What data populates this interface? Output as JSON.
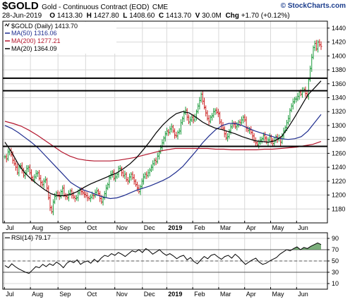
{
  "header": {
    "symbol": "$GOLD",
    "description": "Gold - Continuous Contract (EOD)",
    "exchange": "CME",
    "brand": "© StockCharts.com",
    "date": "28-Jun-2019",
    "open_label": "O",
    "open": "1413.30",
    "high_label": "H",
    "high": "1427.80",
    "low_label": "L",
    "low": "1408.60",
    "close_label": "C",
    "close": "1413.70",
    "volume_label": "V",
    "volume": "30.0M",
    "change_label": "Chg",
    "change": "+1.70 (+0.12%)"
  },
  "legend": {
    "price": "$GOLD (Daily) 1413.70",
    "ma50": "MA(50) 1316.06",
    "ma200": "MA(200) 1277.21",
    "ma20": "MA(20) 1364.09"
  },
  "rsi_legend": "RSI(14) 79.17",
  "colors": {
    "up": "#1a9a3a",
    "down": "#cc2020",
    "ma50": "#1f2d8f",
    "ma200": "#b4162d",
    "ma20": "#000000",
    "rsi": "#000000",
    "rsi_fill": "#5a9a5a",
    "grid": "#d8d8d8"
  },
  "chart_data": [
    {
      "type": "line",
      "title": "$GOLD (Daily)",
      "ylim": [
        1160,
        1450
      ],
      "y_ticks": [
        "1180",
        "1200",
        "1220",
        "1240",
        "1260",
        "1280",
        "1300",
        "1320",
        "1340",
        "1360",
        "1380",
        "1400",
        "1420",
        "1440"
      ],
      "x_labels": [
        "Jul",
        "Aug",
        "Sep",
        "Oct",
        "Nov",
        "Dec",
        "2019",
        "Feb",
        "Mar",
        "Apr",
        "May",
        "Jun"
      ],
      "horizontal_lines": [
        1368,
        1350,
        1270
      ],
      "grid": true,
      "legend_position": "top-left",
      "series": [
        {
          "name": "$GOLD (Daily)",
          "style": "ohlc",
          "values": [
            1255,
            1252,
            1262,
            1264,
            1258,
            1250,
            1245,
            1240,
            1232,
            1240,
            1242,
            1236,
            1228,
            1232,
            1238,
            1240,
            1232,
            1225,
            1222,
            1226,
            1231,
            1232,
            1224,
            1218,
            1215,
            1220,
            1222,
            1210,
            1196,
            1182,
            1176,
            1190,
            1198,
            1203,
            1200,
            1198,
            1205,
            1210,
            1200,
            1198,
            1196,
            1202,
            1206,
            1200,
            1197,
            1195,
            1196,
            1203,
            1207,
            1205,
            1203,
            1201,
            1199,
            1196,
            1195,
            1197,
            1200,
            1199,
            1204,
            1206,
            1202,
            1195,
            1190,
            1196,
            1202,
            1210,
            1215,
            1225,
            1230,
            1233,
            1224,
            1226,
            1230,
            1238,
            1238,
            1232,
            1228,
            1230,
            1222,
            1220,
            1226,
            1230,
            1225,
            1220,
            1215,
            1210,
            1205,
            1212,
            1220,
            1226,
            1230,
            1228,
            1232,
            1236,
            1240,
            1245,
            1250,
            1248,
            1256,
            1262,
            1268,
            1275,
            1282,
            1288,
            1292,
            1290,
            1295,
            1298,
            1292,
            1286,
            1285,
            1290,
            1292,
            1304,
            1310,
            1318,
            1322,
            1312,
            1305,
            1308,
            1312,
            1308,
            1312,
            1320,
            1328,
            1336,
            1345,
            1335,
            1326,
            1318,
            1310,
            1306,
            1312,
            1314,
            1320,
            1322,
            1319,
            1317,
            1305,
            1300,
            1296,
            1288,
            1282,
            1284,
            1292,
            1298,
            1303,
            1302,
            1298,
            1300,
            1305,
            1304,
            1308,
            1312,
            1308,
            1296,
            1293,
            1294,
            1290,
            1285,
            1278,
            1275,
            1272,
            1275,
            1279,
            1281,
            1286,
            1282,
            1276,
            1279,
            1284,
            1278,
            1274,
            1278,
            1284,
            1280,
            1282,
            1276,
            1285,
            1292,
            1297,
            1304,
            1310,
            1322,
            1328,
            1334,
            1338,
            1338,
            1342,
            1348,
            1345,
            1350,
            1352,
            1346,
            1342,
            1366,
            1382,
            1398,
            1412,
            1418,
            1410,
            1420,
            1416,
            1413.7
          ]
        },
        {
          "name": "MA(50)",
          "values": [
            1300,
            1296,
            1290,
            1283,
            1276,
            1268,
            1258,
            1248,
            1238,
            1228,
            1218,
            1212,
            1207,
            1204,
            1200,
            1197,
            1195,
            1196,
            1199,
            1203,
            1207,
            1210,
            1213,
            1217,
            1221,
            1226,
            1233,
            1241,
            1252,
            1263,
            1275,
            1285,
            1294,
            1300,
            1303,
            1303,
            1300,
            1296,
            1292,
            1289,
            1286,
            1283,
            1281,
            1280,
            1281,
            1284,
            1292,
            1304,
            1316
          ]
        },
        {
          "name": "MA(200)",
          "values": [
            1306,
            1303,
            1299,
            1293,
            1286,
            1278,
            1270,
            1262,
            1256,
            1252,
            1250,
            1249,
            1249,
            1249,
            1250,
            1252,
            1254,
            1257,
            1260,
            1263,
            1265,
            1267,
            1267,
            1267,
            1267,
            1267,
            1266,
            1266,
            1265,
            1265,
            1265,
            1265,
            1266,
            1266,
            1267,
            1268,
            1269,
            1271,
            1273,
            1277
          ]
        },
        {
          "name": "MA(20)",
          "values": [
            1276,
            1262,
            1245,
            1232,
            1223,
            1215,
            1208,
            1202,
            1199,
            1199,
            1201,
            1205,
            1211,
            1216,
            1220,
            1224,
            1228,
            1232,
            1238,
            1245,
            1254,
            1265,
            1277,
            1290,
            1301,
            1310,
            1317,
            1320,
            1318,
            1312,
            1305,
            1300,
            1296,
            1294,
            1291,
            1288,
            1284,
            1281,
            1278,
            1277,
            1276,
            1278,
            1284,
            1297,
            1312,
            1328,
            1344,
            1354,
            1364.09
          ]
        }
      ]
    },
    {
      "type": "line",
      "title": "RSI(14)",
      "ylim": [
        0,
        100
      ],
      "y_ticks": [
        "10",
        "30",
        "50",
        "70",
        "90"
      ],
      "x_labels": [
        "Jul",
        "Aug",
        "Sep",
        "Oct",
        "Nov",
        "Dec",
        "2019",
        "Feb",
        "Mar",
        "Apr",
        "May",
        "Jun"
      ],
      "horizontal_lines": [
        70,
        50,
        30
      ],
      "series": [
        {
          "name": "RSI(14)",
          "values": [
            42,
            38,
            45,
            40,
            36,
            33,
            30,
            28,
            34,
            40,
            38,
            44,
            40,
            45,
            42,
            48,
            44,
            38,
            46,
            50,
            47,
            52,
            44,
            48,
            50,
            46,
            53,
            48,
            55,
            60,
            58,
            63,
            60,
            65,
            62,
            58,
            63,
            68,
            66,
            70,
            65,
            72,
            68,
            62,
            66,
            70,
            64,
            60,
            63,
            59,
            54,
            58,
            60,
            52,
            56,
            49,
            45,
            52,
            58,
            54,
            60,
            62,
            57,
            53,
            58,
            60,
            55,
            62,
            57,
            50,
            44,
            48,
            52,
            55,
            48,
            44,
            46,
            50,
            53,
            56,
            62,
            66,
            70,
            68,
            72,
            75,
            70,
            74,
            72,
            76,
            79,
            82,
            79.17
          ]
        }
      ]
    }
  ]
}
